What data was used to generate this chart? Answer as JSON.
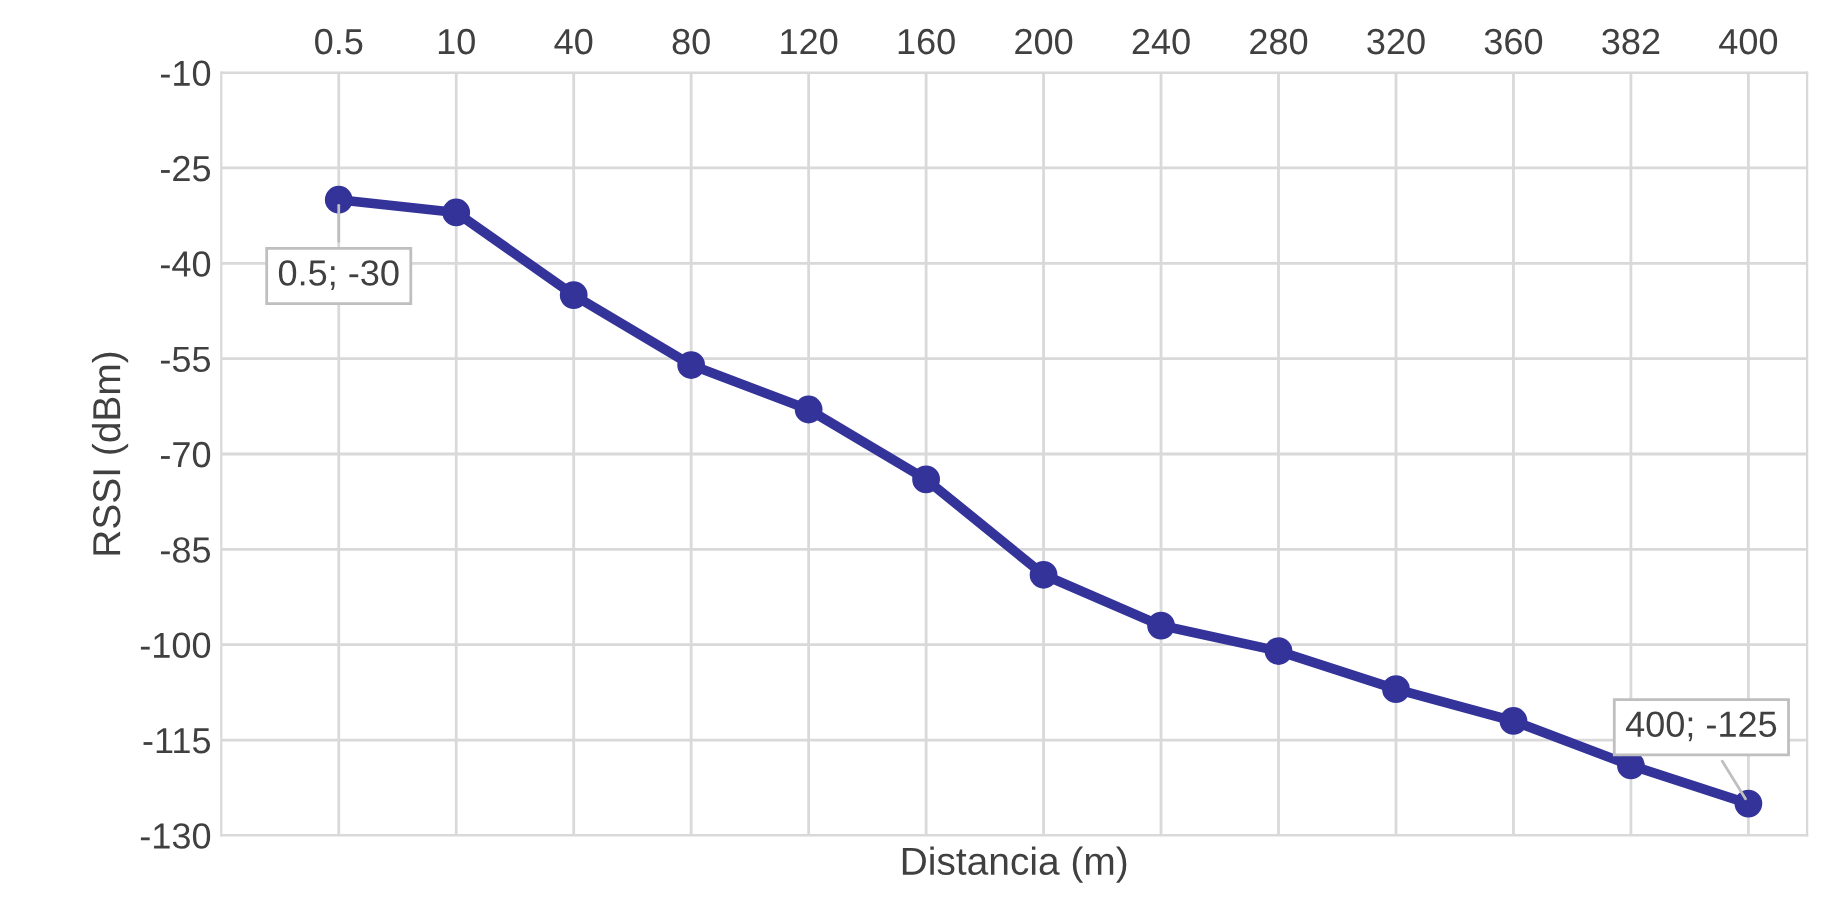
{
  "chart_data": {
    "type": "line",
    "xlabel": "Distancia (m)",
    "ylabel": "RSSI (dBm)",
    "categories": [
      "0.5",
      "10",
      "40",
      "80",
      "120",
      "160",
      "200",
      "240",
      "280",
      "320",
      "360",
      "382",
      "400"
    ],
    "series": [
      {
        "color": "#33339a",
        "values": [
          -30,
          -32,
          -45,
          -56,
          -63,
          -74,
          -89,
          -97,
          -101,
          -107,
          -112,
          -119,
          -125
        ]
      }
    ],
    "ylim": [
      -130,
      -10
    ],
    "yticks": [
      -130,
      -115,
      -100,
      -85,
      -70,
      -55,
      -40,
      -25,
      -10
    ],
    "grid": true,
    "marker": "circle",
    "line_style": "solid",
    "annotations": [
      {
        "text": "0.5; -30",
        "x": "0.5",
        "y": -30
      },
      {
        "text": "400; -125",
        "x": "400",
        "y": -125
      }
    ]
  }
}
